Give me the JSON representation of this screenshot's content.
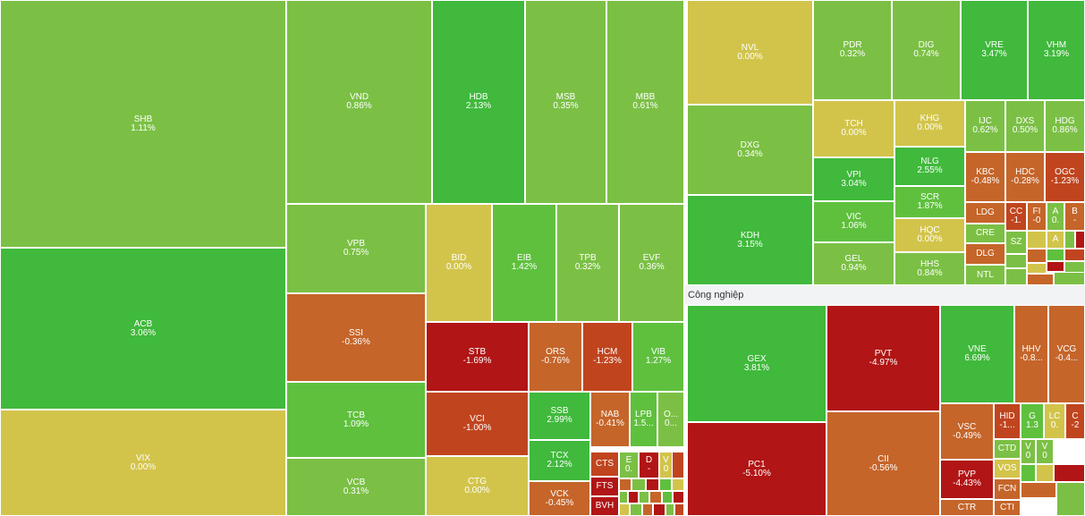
{
  "colors": {
    "up_strong": "#40b93c",
    "up_mid": "#5fc03e",
    "up_light": "#7bc045",
    "ref": "#d2c44b",
    "down_light": "#c5652a",
    "down_mid": "#c0451f",
    "down_strong": "#b11515"
  },
  "sectors": [
    {
      "label": ""
    },
    {
      "label": ""
    },
    {
      "label": "Công nghiệp"
    }
  ],
  "tiles": [
    {
      "sym": "SHB",
      "pct": "1.11%",
      "c": "up_light"
    },
    {
      "sym": "ACB",
      "pct": "3.06%",
      "c": "up_strong"
    },
    {
      "sym": "VIX",
      "pct": "0.00%",
      "c": "ref"
    },
    {
      "sym": "VND",
      "pct": "0.86%",
      "c": "up_light"
    },
    {
      "sym": "HDB",
      "pct": "2.13%",
      "c": "up_strong"
    },
    {
      "sym": "MSB",
      "pct": "0.35%",
      "c": "up_light"
    },
    {
      "sym": "MBB",
      "pct": "0.61%",
      "c": "up_light"
    },
    {
      "sym": "VPB",
      "pct": "0.75%",
      "c": "up_light"
    },
    {
      "sym": "BID",
      "pct": "0.00%",
      "c": "ref"
    },
    {
      "sym": "EIB",
      "pct": "1.42%",
      "c": "up_mid"
    },
    {
      "sym": "TPB",
      "pct": "0.32%",
      "c": "up_light"
    },
    {
      "sym": "EVF",
      "pct": "0.36%",
      "c": "up_light"
    },
    {
      "sym": "SSI",
      "pct": "-0.36%",
      "c": "down_light"
    },
    {
      "sym": "STB",
      "pct": "-1.69%",
      "c": "down_strong"
    },
    {
      "sym": "ORS",
      "pct": "-0.76%",
      "c": "down_light"
    },
    {
      "sym": "HCM",
      "pct": "-1.23%",
      "c": "down_mid"
    },
    {
      "sym": "VIB",
      "pct": "1.27%",
      "c": "up_mid"
    },
    {
      "sym": "TCB",
      "pct": "1.09%",
      "c": "up_mid"
    },
    {
      "sym": "VCI",
      "pct": "-1.00%",
      "c": "down_mid"
    },
    {
      "sym": "SSB",
      "pct": "2.99%",
      "c": "up_strong"
    },
    {
      "sym": "NAB",
      "pct": "-0.41%",
      "c": "down_light"
    },
    {
      "sym": "LPB",
      "pct": "1.5...",
      "c": "up_mid"
    },
    {
      "sym": "O...",
      "pct": "0...",
      "c": "up_light"
    },
    {
      "sym": "TCX",
      "pct": "2.12%",
      "c": "up_strong"
    },
    {
      "sym": "VCB",
      "pct": "0.31%",
      "c": "up_light"
    },
    {
      "sym": "CTG",
      "pct": "0.00%",
      "c": "ref"
    },
    {
      "sym": "VCK",
      "pct": "-0.45%",
      "c": "down_light"
    },
    {
      "sym": "CTS",
      "pct": "",
      "c": "down_mid"
    },
    {
      "sym": "FTS",
      "pct": "",
      "c": "down_strong"
    },
    {
      "sym": "BVH",
      "pct": "",
      "c": "down_strong"
    },
    {
      "sym": "E",
      "pct": "0.",
      "c": "up_light"
    },
    {
      "sym": "D",
      "pct": "-",
      "c": "down_strong"
    },
    {
      "sym": "V",
      "pct": "0",
      "c": "ref"
    },
    {
      "sym": "NVL",
      "pct": "0.00%",
      "c": "ref"
    },
    {
      "sym": "PDR",
      "pct": "0.32%",
      "c": "up_light"
    },
    {
      "sym": "DIG",
      "pct": "0.74%",
      "c": "up_light"
    },
    {
      "sym": "VRE",
      "pct": "3.47%",
      "c": "up_strong"
    },
    {
      "sym": "VHM",
      "pct": "3.19%",
      "c": "up_strong"
    },
    {
      "sym": "DXG",
      "pct": "0.34%",
      "c": "up_light"
    },
    {
      "sym": "TCH",
      "pct": "0.00%",
      "c": "ref"
    },
    {
      "sym": "KHG",
      "pct": "0.00%",
      "c": "ref"
    },
    {
      "sym": "IJC",
      "pct": "0.62%",
      "c": "up_light"
    },
    {
      "sym": "DXS",
      "pct": "0.50%",
      "c": "up_light"
    },
    {
      "sym": "HDG",
      "pct": "0.86%",
      "c": "up_light"
    },
    {
      "sym": "VPI",
      "pct": "3.04%",
      "c": "up_strong"
    },
    {
      "sym": "NLG",
      "pct": "2.55%",
      "c": "up_strong"
    },
    {
      "sym": "KBC",
      "pct": "-0.48%",
      "c": "down_light"
    },
    {
      "sym": "HDC",
      "pct": "-0.28%",
      "c": "down_light"
    },
    {
      "sym": "OGC",
      "pct": "-1.23%",
      "c": "down_mid"
    },
    {
      "sym": "KDH",
      "pct": "3.15%",
      "c": "up_strong"
    },
    {
      "sym": "VIC",
      "pct": "1.06%",
      "c": "up_mid"
    },
    {
      "sym": "SCR",
      "pct": "1.87%",
      "c": "up_mid"
    },
    {
      "sym": "LDG",
      "pct": "",
      "c": "down_light"
    },
    {
      "sym": "CC",
      "pct": "-1.",
      "c": "down_mid"
    },
    {
      "sym": "FI",
      "pct": "-0",
      "c": "down_light"
    },
    {
      "sym": "A",
      "pct": "0.",
      "c": "up_light"
    },
    {
      "sym": "B",
      "pct": "-",
      "c": "down_light"
    },
    {
      "sym": "HQC",
      "pct": "0.00%",
      "c": "ref"
    },
    {
      "sym": "CRE",
      "pct": "",
      "c": "up_light"
    },
    {
      "sym": "SZ",
      "pct": "",
      "c": "up_light"
    },
    {
      "sym": "A",
      "pct": "",
      "c": "ref"
    },
    {
      "sym": "GEL",
      "pct": "0.94%",
      "c": "up_light"
    },
    {
      "sym": "HHS",
      "pct": "0.84%",
      "c": "up_light"
    },
    {
      "sym": "DLG",
      "pct": "",
      "c": "down_light"
    },
    {
      "sym": "NTL",
      "pct": "",
      "c": "up_light"
    },
    {
      "sym": "GEX",
      "pct": "3.81%",
      "c": "up_strong"
    },
    {
      "sym": "PVT",
      "pct": "-4.97%",
      "c": "down_strong"
    },
    {
      "sym": "VNE",
      "pct": "6.69%",
      "c": "up_strong"
    },
    {
      "sym": "HHV",
      "pct": "-0.8...",
      "c": "down_light"
    },
    {
      "sym": "VCG",
      "pct": "-0.4...",
      "c": "down_light"
    },
    {
      "sym": "PC1",
      "pct": "-5.10%",
      "c": "down_strong"
    },
    {
      "sym": "CII",
      "pct": "-0.56%",
      "c": "down_light"
    },
    {
      "sym": "VSC",
      "pct": "-0.49%",
      "c": "down_light"
    },
    {
      "sym": "HID",
      "pct": "-1...",
      "c": "down_mid"
    },
    {
      "sym": "G",
      "pct": "1.3",
      "c": "up_mid"
    },
    {
      "sym": "LC",
      "pct": "0.",
      "c": "ref"
    },
    {
      "sym": "C",
      "pct": "-2",
      "c": "down_mid"
    },
    {
      "sym": "CTD",
      "pct": "",
      "c": "up_light"
    },
    {
      "sym": "V",
      "pct": "0",
      "c": "up_light"
    },
    {
      "sym": "V",
      "pct": "0",
      "c": "up_light"
    },
    {
      "sym": "PVP",
      "pct": "-4.43%",
      "c": "down_strong"
    },
    {
      "sym": "VOS",
      "pct": "",
      "c": "ref"
    },
    {
      "sym": "FCN",
      "pct": "",
      "c": "down_light"
    },
    {
      "sym": "CTR",
      "pct": "",
      "c": "down_light"
    },
    {
      "sym": "CTI",
      "pct": "",
      "c": "down_light"
    }
  ],
  "mini_tiles": [
    {
      "c": "down_light"
    },
    {
      "c": "up_light"
    },
    {
      "c": "down_strong"
    },
    {
      "c": "up_mid"
    },
    {
      "c": "down_mid"
    },
    {
      "c": "ref"
    },
    {
      "c": "up_light"
    },
    {
      "c": "down_strong"
    },
    {
      "c": "up_light"
    },
    {
      "c": "down_light"
    },
    {
      "c": "up_mid"
    },
    {
      "c": "down_strong"
    },
    {
      "c": "ref"
    },
    {
      "c": "up_light"
    },
    {
      "c": "down_light"
    },
    {
      "c": "down_strong"
    },
    {
      "c": "up_light"
    },
    {
      "c": "down_mid"
    },
    {
      "c": "ref"
    },
    {
      "c": "up_light"
    },
    {
      "c": "down_strong"
    },
    {
      "c": "up_light"
    },
    {
      "c": "down_light"
    },
    {
      "c": "up_mid"
    },
    {
      "c": "down_mid"
    },
    {
      "c": "up_light"
    },
    {
      "c": "ref"
    },
    {
      "c": "down_strong"
    },
    {
      "c": "up_light"
    },
    {
      "c": "down_light"
    },
    {
      "c": "up_light"
    },
    {
      "c": "down_strong"
    },
    {
      "c": "up_mid"
    },
    {
      "c": "ref"
    },
    {
      "c": "down_light"
    },
    {
      "c": "up_light"
    }
  ]
}
